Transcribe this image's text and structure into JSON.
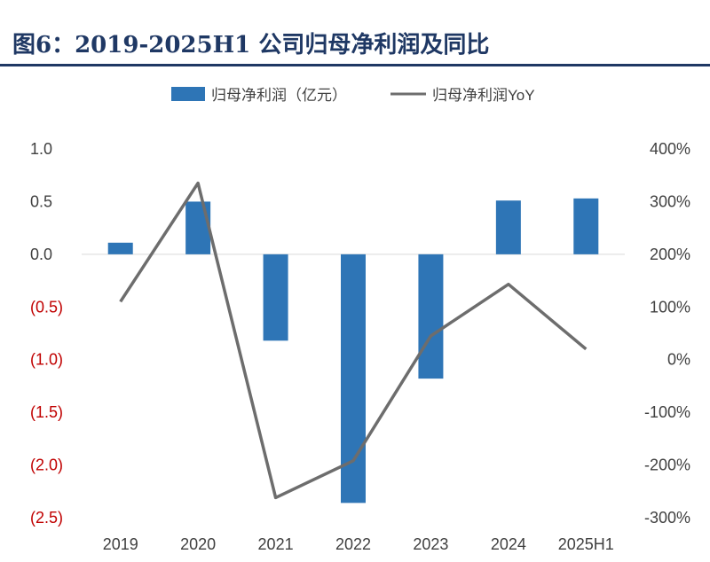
{
  "title": "图6：2019-2025H1 公司归母净利润及同比",
  "chart_data": {
    "type": "bar+line",
    "categories": [
      "2019",
      "2020",
      "2021",
      "2022",
      "2023",
      "2024",
      "2025H1"
    ],
    "series": [
      {
        "name": "归母净利润（亿元）",
        "type": "bar",
        "axis": "left",
        "color": "#2e75b6",
        "values": [
          0.11,
          0.5,
          -0.82,
          -2.36,
          -1.18,
          0.51,
          0.53
        ]
      },
      {
        "name": "归母净利润YoY",
        "type": "line",
        "axis": "right",
        "color": "#6d6d6d",
        "values": [
          110,
          335,
          -262,
          -192,
          45,
          143,
          20
        ]
      }
    ],
    "y_left": {
      "min": -2.5,
      "max": 1.0,
      "ticks": [
        "1.0",
        "0.5",
        "0.0",
        "(0.5)",
        "(1.0)",
        "(1.5)",
        "(2.0)",
        "(2.5)"
      ],
      "tick_values": [
        1.0,
        0.5,
        0.0,
        -0.5,
        -1.0,
        -1.5,
        -2.0,
        -2.5
      ],
      "negative_color": "#c00000",
      "positive_color": "#404040"
    },
    "y_right": {
      "min": -300,
      "max": 400,
      "unit": "%",
      "ticks": [
        "400%",
        "300%",
        "200%",
        "100%",
        "0%",
        "-100%",
        "-200%",
        "-300%"
      ],
      "tick_values": [
        400,
        300,
        200,
        100,
        0,
        -100,
        -200,
        -300
      ]
    },
    "legend_position": "top"
  }
}
